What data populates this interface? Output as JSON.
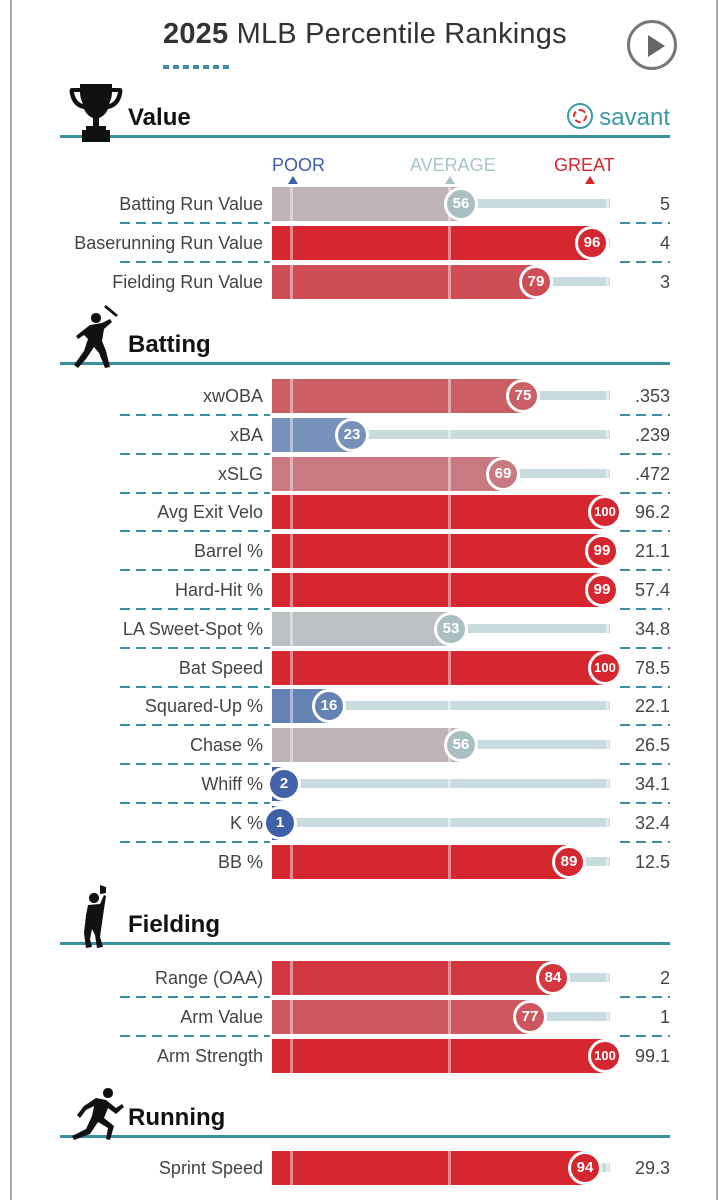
{
  "header": {
    "title_bold": "2025",
    "title_rest": "MLB Percentile Rankings"
  },
  "brand": {
    "label": "savant",
    "accent": "#3a9aa5"
  },
  "scale": {
    "poor": "POOR",
    "average": "AVERAGE",
    "great": "GREAT",
    "poor_color": "#3d5fa8",
    "average_color": "#a9c4c7",
    "great_color": "#d6262f"
  },
  "chart_data": {
    "type": "bar",
    "title": "2025 MLB Percentile Rankings",
    "xlim": [
      0,
      100
    ],
    "sections": [
      {
        "name": "Value",
        "icon": "trophy-icon",
        "metrics": [
          {
            "label": "Batting Run Value",
            "percentile": 56,
            "value": "5"
          },
          {
            "label": "Baserunning Run Value",
            "percentile": 96,
            "value": "4"
          },
          {
            "label": "Fielding Run Value",
            "percentile": 79,
            "value": "3"
          }
        ]
      },
      {
        "name": "Batting",
        "icon": "batter-icon",
        "metrics": [
          {
            "label": "xwOBA",
            "percentile": 75,
            "value": ".353"
          },
          {
            "label": "xBA",
            "percentile": 23,
            "value": ".239"
          },
          {
            "label": "xSLG",
            "percentile": 69,
            "value": ".472"
          },
          {
            "label": "Avg Exit Velo",
            "percentile": 100,
            "value": "96.2"
          },
          {
            "label": "Barrel %",
            "percentile": 99,
            "value": "21.1"
          },
          {
            "label": "Hard-Hit %",
            "percentile": 99,
            "value": "57.4"
          },
          {
            "label": "LA Sweet-Spot %",
            "percentile": 53,
            "value": "34.8"
          },
          {
            "label": "Bat Speed",
            "percentile": 100,
            "value": "78.5"
          },
          {
            "label": "Squared-Up %",
            "percentile": 16,
            "value": "22.1"
          },
          {
            "label": "Chase %",
            "percentile": 56,
            "value": "26.5"
          },
          {
            "label": "Whiff %",
            "percentile": 2,
            "value": "34.1"
          },
          {
            "label": "K %",
            "percentile": 1,
            "value": "32.4"
          },
          {
            "label": "BB %",
            "percentile": 89,
            "value": "12.5"
          }
        ]
      },
      {
        "name": "Fielding",
        "icon": "fielder-icon",
        "metrics": [
          {
            "label": "Range (OAA)",
            "percentile": 84,
            "value": "2"
          },
          {
            "label": "Arm Value",
            "percentile": 77,
            "value": "1"
          },
          {
            "label": "Arm Strength",
            "percentile": 100,
            "value": "99.1"
          }
        ]
      },
      {
        "name": "Running",
        "icon": "runner-icon",
        "metrics": [
          {
            "label": "Sprint Speed",
            "percentile": 94,
            "value": "29.3"
          }
        ]
      }
    ]
  }
}
